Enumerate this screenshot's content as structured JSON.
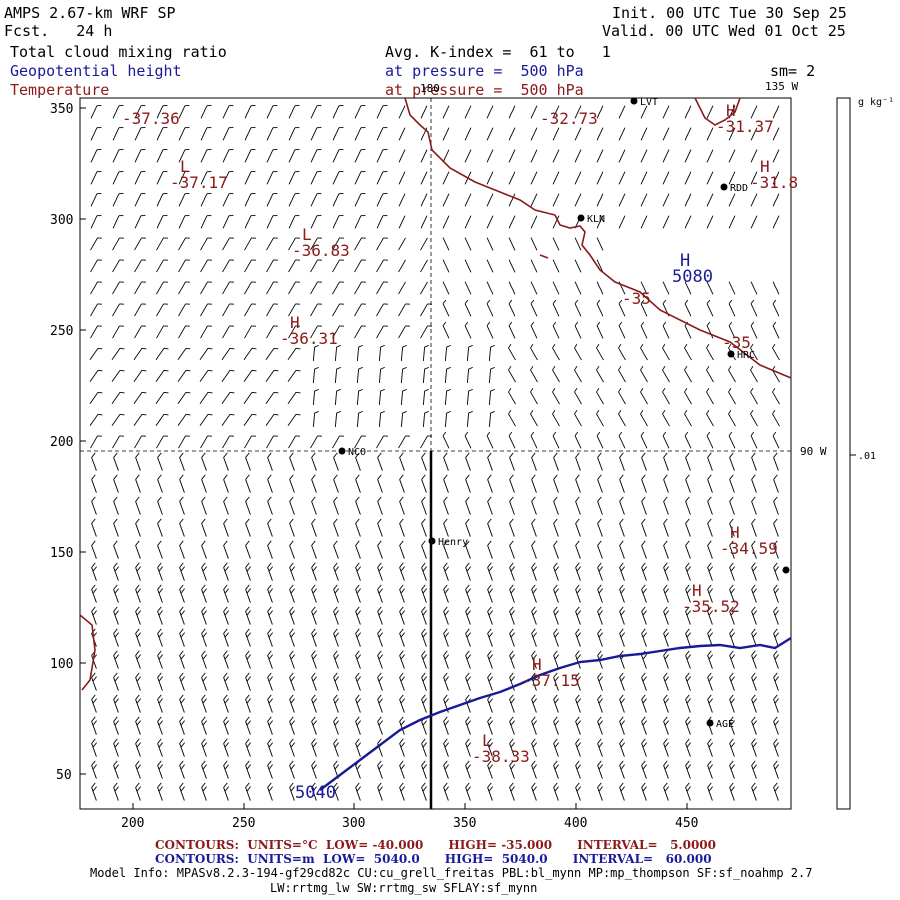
{
  "header": {
    "model_title": "AMPS 2.67-km WRF SP",
    "forecast": "Fcst.   24 h",
    "init": "Init. 00 UTC Tue 30 Sep 25",
    "valid": "Valid. 00 UTC Wed 01 Oct 25",
    "field1": "Total cloud mixing ratio",
    "field2": "Geopotential height",
    "field3": "Temperature",
    "avg": "Avg. K-index =  61 to   1",
    "pressure1": "at pressure =  500 hPa",
    "pressure2": "at pressure =  500 hPa",
    "sm": "sm= 2"
  },
  "colors": {
    "temp": "#8b1a1a",
    "height": "#1a1a99",
    "barb": "#000000",
    "frame": "#000000"
  },
  "map": {
    "x_ticks": [
      "200",
      "250",
      "300",
      "350",
      "400",
      "450"
    ],
    "y_ticks": [
      "50",
      "100",
      "150",
      "200",
      "250",
      "300",
      "350"
    ],
    "meridian_labels": [
      "180",
      "135 W",
      "90 W"
    ],
    "stations": [
      "LVT",
      "RDD",
      "KLN",
      "HRC",
      "NCO",
      "Henry",
      "AGE"
    ],
    "temp_labels": [
      {
        "text": "-37.36",
        "hl": ""
      },
      {
        "text": "-37.17",
        "hl": "L"
      },
      {
        "text": "-36.83",
        "hl": "L"
      },
      {
        "text": "-36.31",
        "hl": "H"
      },
      {
        "text": "-32.73",
        "hl": ""
      },
      {
        "text": "-31.37",
        "hl": "H"
      },
      {
        "text": "-31.8",
        "hl": "H"
      },
      {
        "text": "-35",
        "hl": ""
      },
      {
        "text": "-35",
        "hl": ""
      },
      {
        "text": "-34.59",
        "hl": "H"
      },
      {
        "text": "-35.52",
        "hl": "H"
      },
      {
        "text": "-37.15",
        "hl": "H"
      },
      {
        "text": "-38.33",
        "hl": "L"
      }
    ],
    "height_labels": [
      {
        "text": "5080",
        "hl": "H"
      },
      {
        "text": "5040",
        "hl": ""
      }
    ]
  },
  "colorbar": {
    "units": "g kg⁻¹",
    "value": ".01"
  },
  "footer": {
    "temp_contours": "CONTOURS:  UNITS=°C  LOW= -40.000      HIGH= -35.000      INTERVAL=   5.0000",
    "height_contours": "CONTOURS:  UNITS=m  LOW=  5040.0      HIGH=  5040.0      INTERVAL=   60.000",
    "model_info": "Model Info: MPASv8.2.3-194-gf29cd82c CU:cu_grell_freitas PBL:bl_mynn MP:mp_thompson SF:sf_noahmp 2.7",
    "model_info2": "LW:rrtmg_lw SW:rrtmg_sw SFLAY:sf_mynn"
  }
}
